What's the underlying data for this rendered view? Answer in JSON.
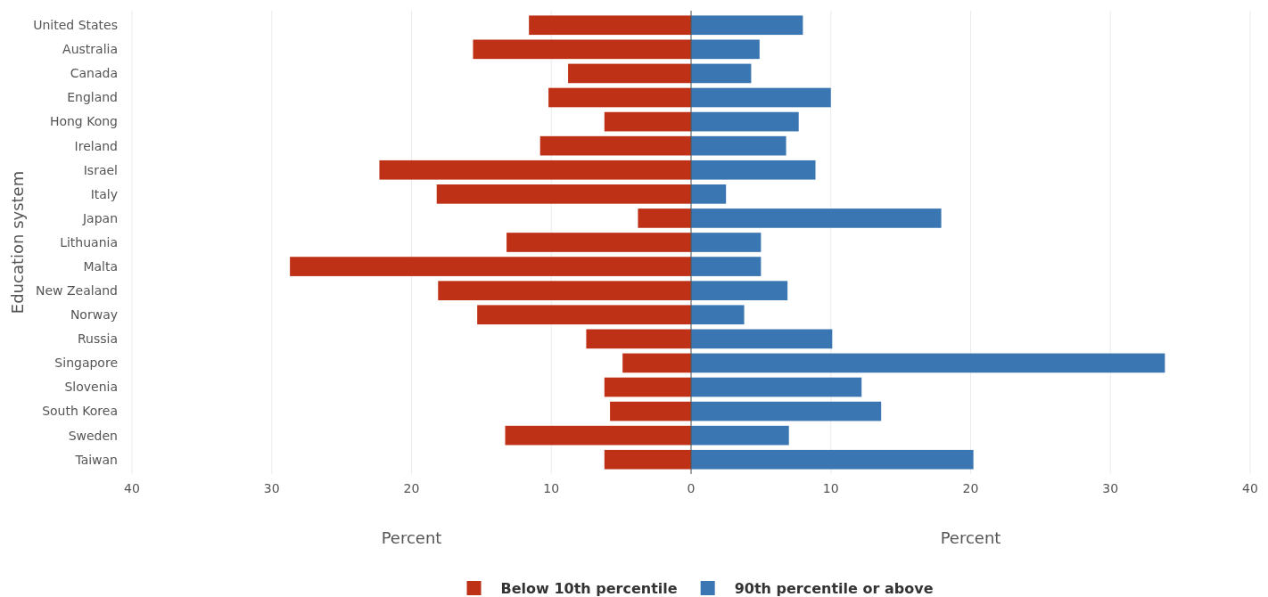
{
  "chart_data": {
    "type": "bar",
    "orientation": "horizontal",
    "stacked": true,
    "categories": [
      "United States",
      "Australia",
      "Canada",
      "England",
      "Hong Kong",
      "Ireland",
      "Israel",
      "Italy",
      "Japan",
      "Lithuania",
      "Malta",
      "New Zealand",
      "Norway",
      "Russia",
      "Singapore",
      "Slovenia",
      "South Korea",
      "Sweden",
      "Taiwan"
    ],
    "series": [
      {
        "name": "Below 10th percentile",
        "color": "#bf3117",
        "values": [
          -11.6,
          -15.6,
          -8.8,
          -10.2,
          -6.2,
          -10.8,
          -22.3,
          -18.2,
          -3.8,
          -13.2,
          -28.7,
          -18.1,
          -15.3,
          -7.5,
          -4.9,
          -6.2,
          -5.8,
          -13.3,
          -6.2
        ]
      },
      {
        "name": "90th percentile or above",
        "color": "#3a76b1",
        "values": [
          8.0,
          4.9,
          4.3,
          10.0,
          7.7,
          6.8,
          8.9,
          2.5,
          17.9,
          5.0,
          5.0,
          6.9,
          3.8,
          10.1,
          33.9,
          12.2,
          13.6,
          7.0,
          20.2
        ]
      }
    ],
    "xlim": [
      -40,
      40
    ],
    "xticks": [
      {
        "value": -40,
        "label": "40"
      },
      {
        "value": -30,
        "label": "30"
      },
      {
        "value": -20,
        "label": "20"
      },
      {
        "value": -10,
        "label": "10"
      },
      0,
      10,
      20,
      30,
      40
    ],
    "xlabel": "Percent",
    "annotations": [
      "Percent"
    ],
    "ylabel": "Education system",
    "grid": "x",
    "legend": "bottom"
  }
}
